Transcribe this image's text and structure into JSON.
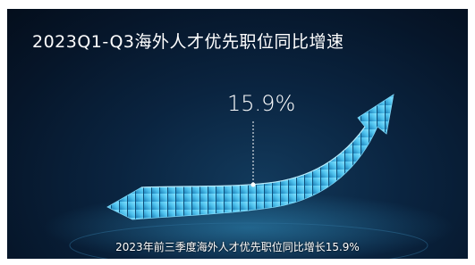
{
  "title": "2023Q1-Q3海外人才优先职位同比增速",
  "highlight": "15.9%",
  "caption": "2023年前三季度海外人才优先职位同比增长15.9%"
}
